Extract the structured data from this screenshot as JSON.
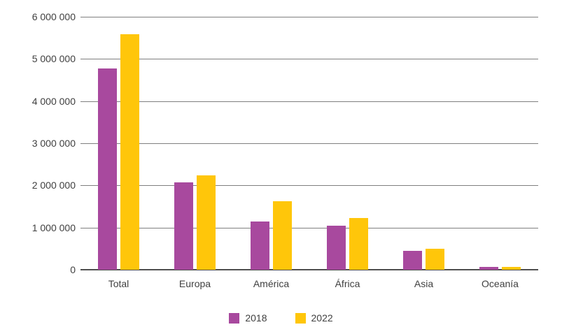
{
  "chart_data": {
    "type": "bar",
    "title": "",
    "categories": [
      "Total",
      "Europa",
      "América",
      "África",
      "Asia",
      "Oceanía"
    ],
    "series": [
      {
        "name": "2018",
        "color": "#A8499E",
        "values": [
          4770000,
          2080000,
          1150000,
          1050000,
          450000,
          70000
        ]
      },
      {
        "name": "2022",
        "color": "#FFC60A",
        "values": [
          5590000,
          2230000,
          1630000,
          1230000,
          500000,
          60000
        ]
      }
    ],
    "ylim": [
      0,
      6000000
    ],
    "ytick_step": 1000000,
    "ytick_labels": [
      "0",
      "1 000 000",
      "2 000 000",
      "3 000 000",
      "4 000 000",
      "5 000 000",
      "6 000 000"
    ],
    "xlabel": "",
    "ylabel": "",
    "grid": "horizontal",
    "legend_position": "bottom"
  },
  "colors": {
    "background": "#ffffff",
    "gridline": "#7f7f7f",
    "axis_line": "#4f4f4f",
    "text": "#404040"
  }
}
